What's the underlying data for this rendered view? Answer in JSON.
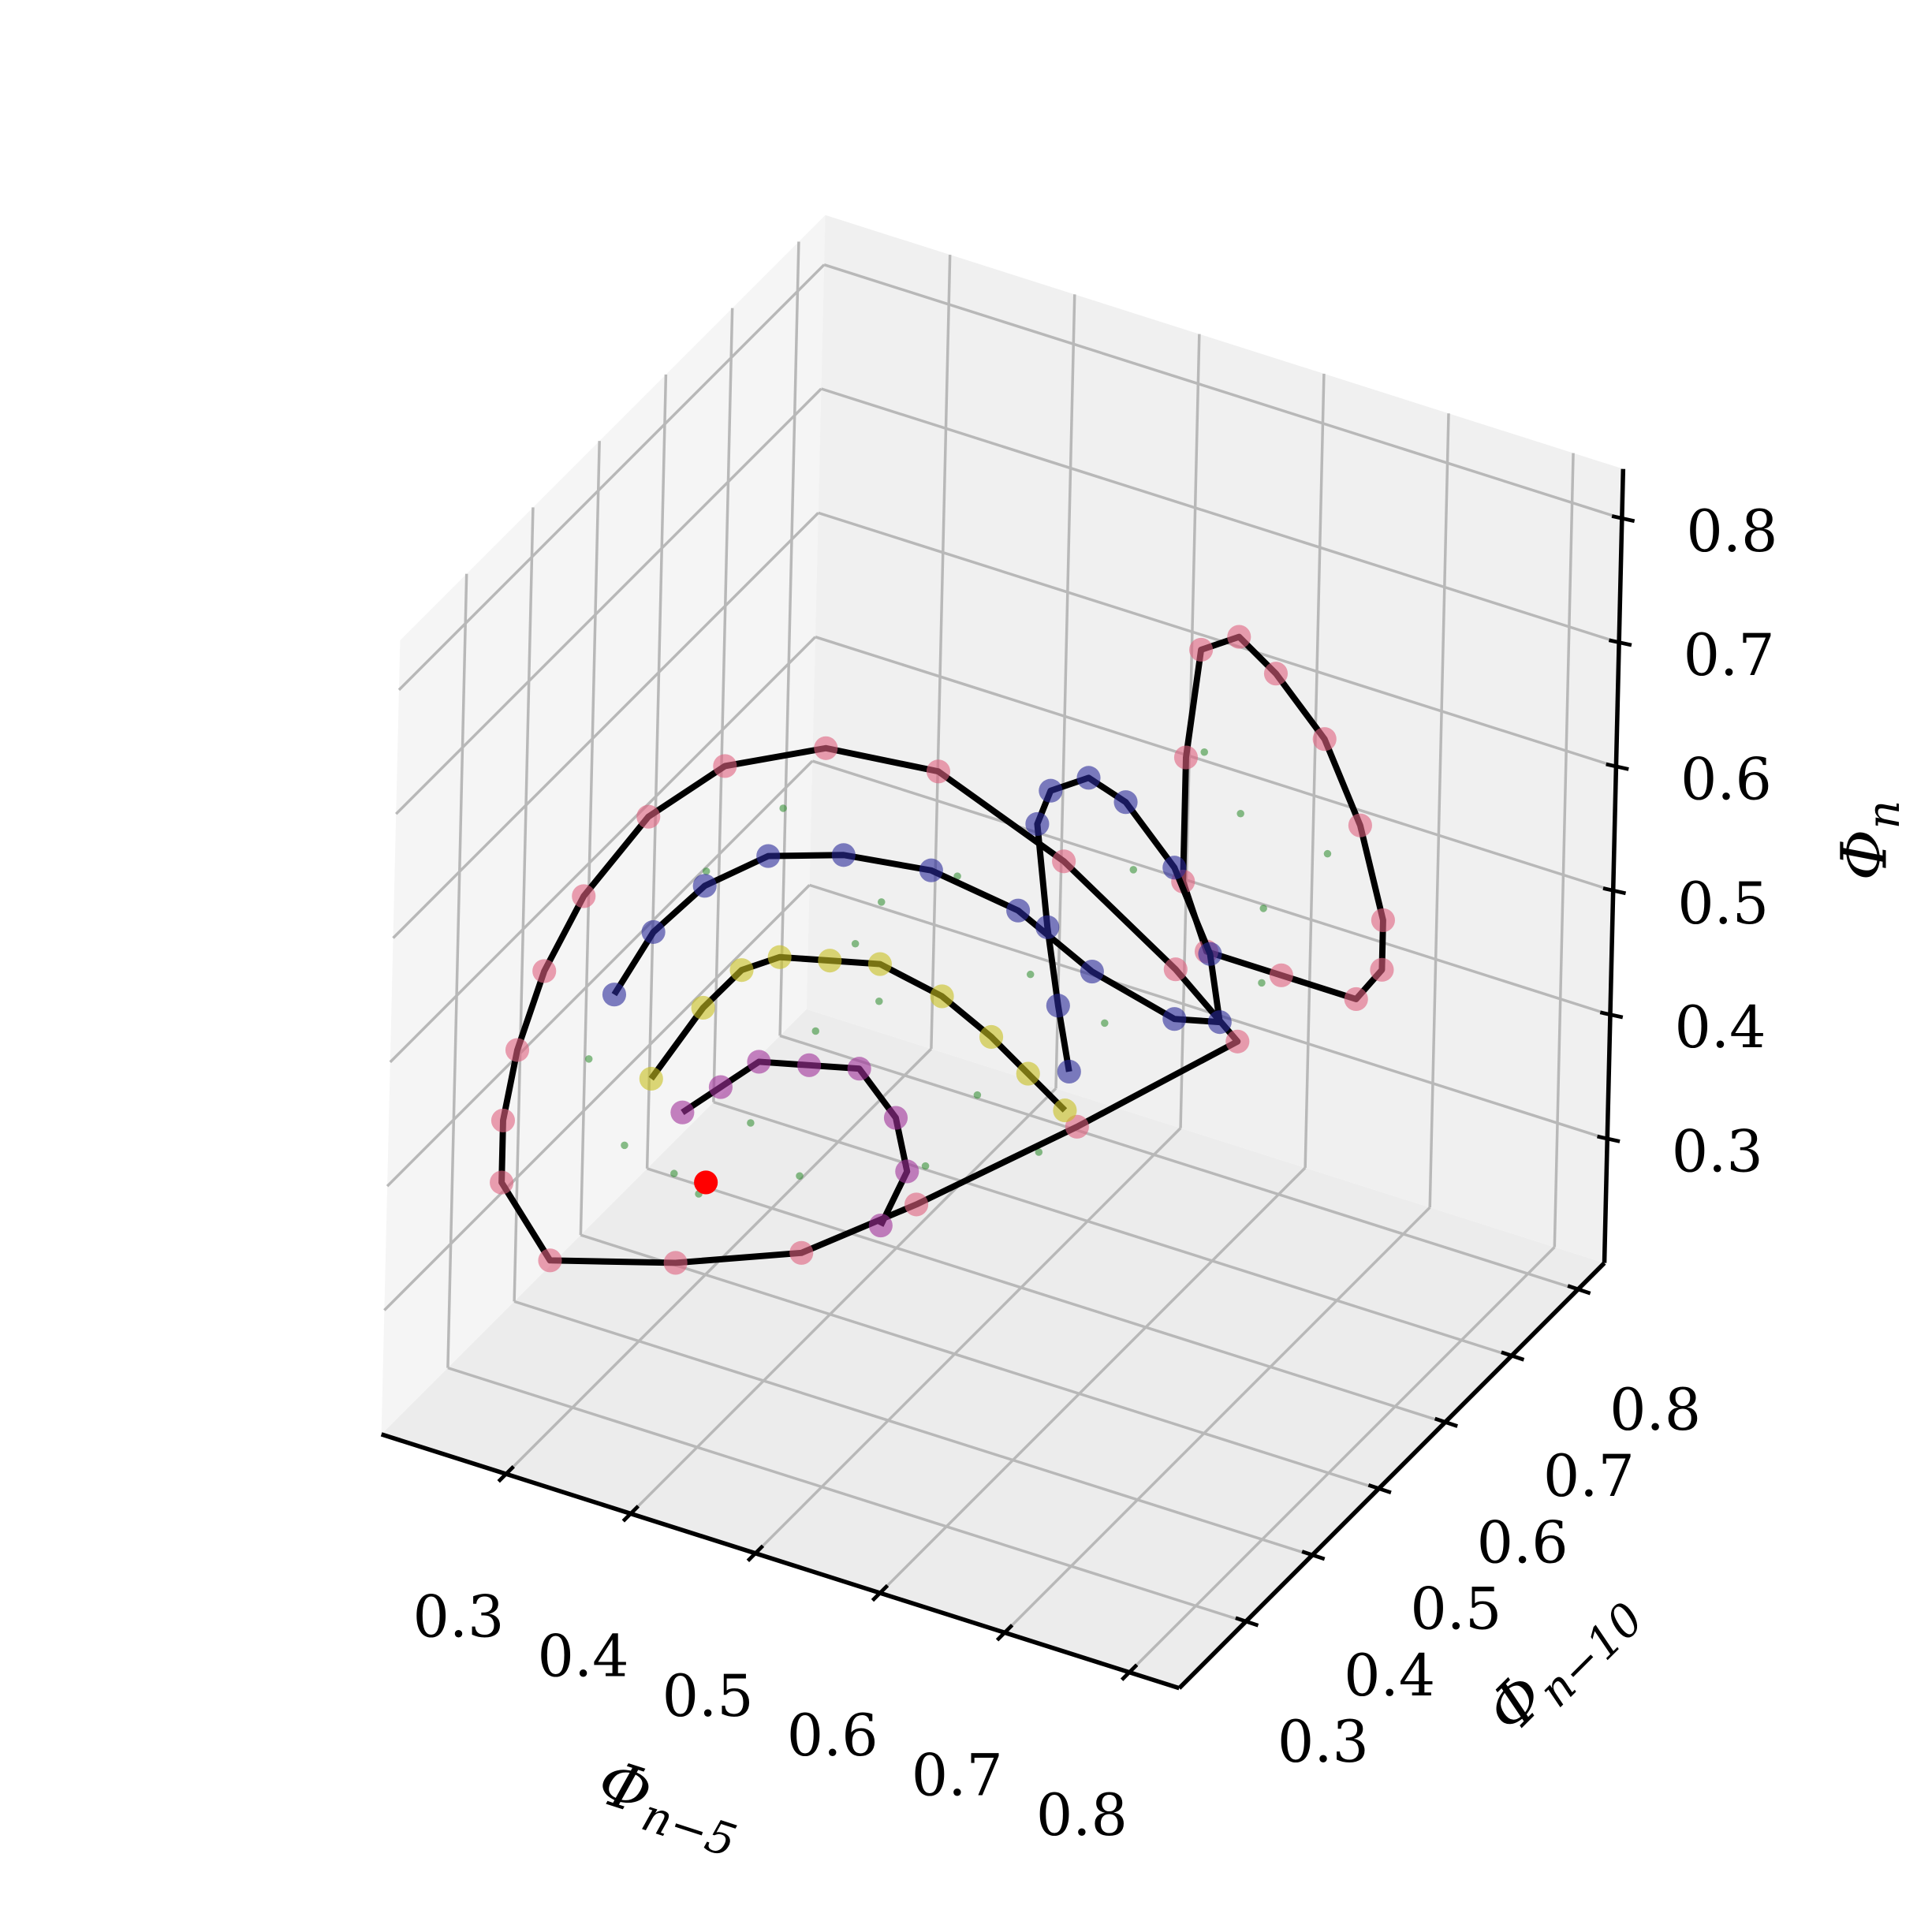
{
  "chart_data": {
    "type": "scatter3d",
    "xlabel": {
      "base": "Φ",
      "subscript": "n−5"
    },
    "ylabel": {
      "base": "Φ",
      "subscript": "n−10"
    },
    "zlabel": {
      "base": "Φ",
      "subscript": "n"
    },
    "xlim": [
      0.2,
      0.84
    ],
    "ylim": [
      0.2,
      0.84
    ],
    "zlim": [
      0.2,
      0.84
    ],
    "xticks": [
      0.3,
      0.4,
      0.5,
      0.6,
      0.7,
      0.8
    ],
    "yticks": [
      0.3,
      0.4,
      0.5,
      0.6,
      0.7,
      0.8
    ],
    "zticks": [
      0.3,
      0.4,
      0.5,
      0.6,
      0.7,
      0.8
    ],
    "grid": true,
    "cloud": {
      "color": "#2a8a2a",
      "x": [
        0.39,
        0.44,
        0.49,
        0.55,
        0.61,
        0.67,
        0.35,
        0.29,
        0.26,
        0.41,
        0.49,
        0.57,
        0.69,
        0.64,
        0.66,
        0.71,
        0.61,
        0.33,
        0.53,
        0.47,
        0.35,
        0.43,
        0.62,
        0.66
      ],
      "y": [
        0.39,
        0.39,
        0.39,
        0.39,
        0.39,
        0.39,
        0.39,
        0.39,
        0.39,
        0.39,
        0.39,
        0.39,
        0.39,
        0.65,
        0.65,
        0.65,
        0.65,
        0.39,
        0.39,
        0.39,
        0.39,
        0.39,
        0.39,
        0.65
      ],
      "z": [
        0.41,
        0.5,
        0.62,
        0.66,
        0.6,
        0.58,
        0.34,
        0.36,
        0.42,
        0.67,
        0.54,
        0.49,
        0.71,
        0.6,
        0.53,
        0.59,
        0.64,
        0.35,
        0.42,
        0.58,
        0.6,
        0.38,
        0.46,
        0.47
      ]
    },
    "series": [
      {
        "color": "#e0607e",
        "line_color": "#000000",
        "closed": true,
        "x": [
          0.26,
          0.26,
          0.27,
          0.29,
          0.32,
          0.37,
          0.43,
          0.51,
          0.6,
          0.65,
          0.71,
          0.74,
          0.65,
          0.57,
          0.5,
          0.4,
          0.3
        ],
        "y": [
          0.26,
          0.26,
          0.26,
          0.26,
          0.26,
          0.26,
          0.26,
          0.26,
          0.26,
          0.36,
          0.42,
          0.46,
          0.39,
          0.3,
          0.26,
          0.26,
          0.26
        ],
        "z": [
          0.39,
          0.44,
          0.5,
          0.57,
          0.64,
          0.72,
          0.78,
          0.82,
          0.83,
          0.72,
          0.62,
          0.55,
          0.49,
          0.45,
          0.41,
          0.37,
          0.34
        ]
      },
      {
        "color": "#e0607e",
        "line_color": "#000000",
        "closed": true,
        "x": [
          0.62,
          0.59,
          0.58,
          0.58,
          0.6,
          0.66,
          0.72,
          0.74,
          0.74,
          0.72,
          0.69,
          0.65
        ],
        "y": [
          0.68,
          0.68,
          0.68,
          0.68,
          0.68,
          0.68,
          0.68,
          0.68,
          0.68,
          0.68,
          0.68,
          0.68
        ],
        "z": [
          0.72,
          0.7,
          0.61,
          0.51,
          0.46,
          0.46,
          0.46,
          0.49,
          0.53,
          0.6,
          0.66,
          0.7
        ]
      },
      {
        "color": "#2a2a9a",
        "line_color": "#000000",
        "closed": false,
        "x": [
          0.31,
          0.34,
          0.38,
          0.43,
          0.49,
          0.56,
          0.63,
          0.69,
          0.71,
          0.71,
          0.67,
          0.64,
          0.6,
          0.57,
          0.54,
          0.53,
          0.54,
          0.55,
          0.56
        ],
        "y": [
          0.33,
          0.33,
          0.33,
          0.33,
          0.33,
          0.33,
          0.33,
          0.33,
          0.42,
          0.49,
          0.55,
          0.55,
          0.55,
          0.55,
          0.55,
          0.55,
          0.55,
          0.55,
          0.55
        ],
        "z": [
          0.52,
          0.58,
          0.63,
          0.67,
          0.69,
          0.7,
          0.69,
          0.66,
          0.58,
          0.54,
          0.55,
          0.61,
          0.65,
          0.66,
          0.64,
          0.61,
          0.53,
          0.47,
          0.42
        ]
      },
      {
        "color": "#c8c020",
        "line_color": "#000000",
        "closed": false,
        "x": [
          0.31,
          0.35,
          0.38,
          0.41,
          0.45,
          0.49,
          0.54,
          0.58,
          0.61,
          0.64
        ],
        "y": [
          0.39,
          0.39,
          0.39,
          0.39,
          0.39,
          0.39,
          0.39,
          0.39,
          0.39,
          0.39
        ],
        "z": [
          0.42,
          0.49,
          0.53,
          0.55,
          0.56,
          0.57,
          0.56,
          0.54,
          0.52,
          0.5
        ]
      },
      {
        "color": "#a0309a",
        "line_color": "#000000",
        "closed": false,
        "x": [
          0.32,
          0.35,
          0.38,
          0.42,
          0.46,
          0.49,
          0.5,
          0.48
        ],
        "y": [
          0.42,
          0.42,
          0.42,
          0.42,
          0.42,
          0.42,
          0.42,
          0.42
        ],
        "z": [
          0.38,
          0.41,
          0.44,
          0.45,
          0.46,
          0.43,
          0.39,
          0.34
        ]
      },
      {
        "color": "#ff0000",
        "closed": false,
        "x": [
          0.34
        ],
        "y": [
          0.42
        ],
        "z": [
          0.33
        ]
      }
    ]
  }
}
